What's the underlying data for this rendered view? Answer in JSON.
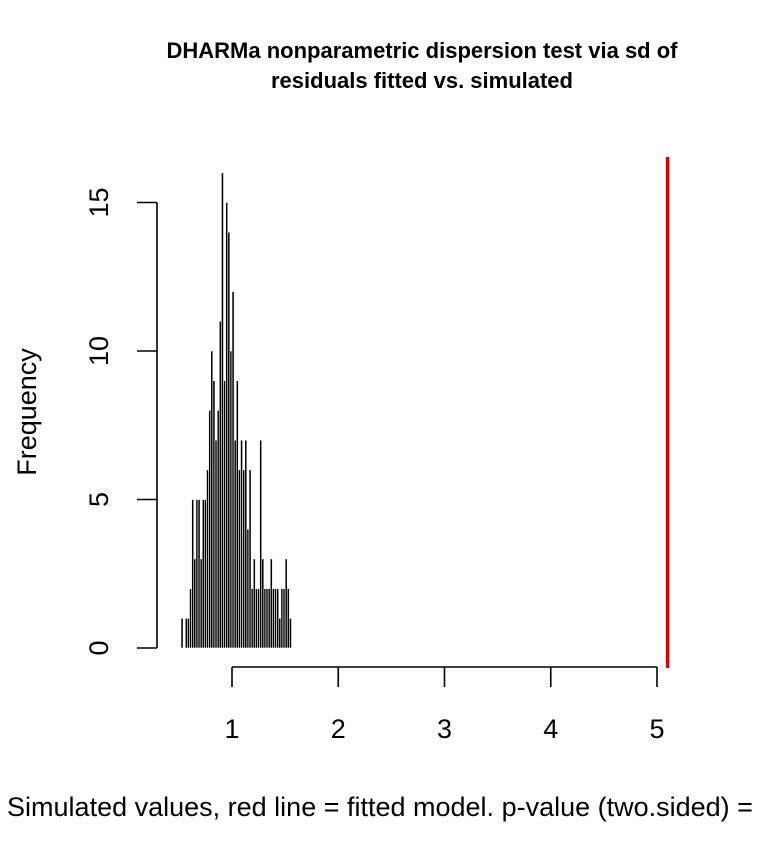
{
  "chart_data": {
    "type": "bar",
    "title_lines": [
      "DHARMa nonparametric dispersion test via sd of",
      "residuals fitted vs. simulated"
    ],
    "xlabel": "Simulated values, red line = fitted model. p-value (two.sided) =",
    "ylabel": "Frequency",
    "xlim": [
      0.3,
      5.1
    ],
    "ylim": [
      0,
      16
    ],
    "x_ticks": [
      1,
      2,
      3,
      4,
      5
    ],
    "y_ticks": [
      0,
      5,
      10,
      15
    ],
    "bin_width": 0.02,
    "bin_starts": [
      0.52,
      0.54,
      0.56,
      0.58,
      0.6,
      0.62,
      0.64,
      0.66,
      0.68,
      0.7,
      0.72,
      0.74,
      0.76,
      0.78,
      0.8,
      0.82,
      0.84,
      0.86,
      0.88,
      0.9,
      0.92,
      0.94,
      0.96,
      0.98,
      1.0,
      1.02,
      1.04,
      1.06,
      1.08,
      1.1,
      1.12,
      1.14,
      1.16,
      1.18,
      1.2,
      1.22,
      1.24,
      1.26,
      1.28,
      1.3,
      1.32,
      1.34,
      1.36,
      1.38,
      1.4,
      1.42,
      1.44,
      1.46,
      1.48,
      1.5,
      1.52,
      1.54
    ],
    "counts": [
      1,
      0,
      1,
      1,
      2,
      5,
      3,
      5,
      5,
      3,
      5,
      5,
      6,
      8,
      10,
      9,
      7,
      8,
      11,
      16,
      9,
      15,
      14,
      10,
      12,
      7,
      9,
      6,
      7,
      6,
      7,
      4,
      6,
      2,
      3,
      2,
      2,
      7,
      3,
      2,
      2,
      2,
      3,
      2,
      2,
      2,
      1,
      2,
      2,
      3,
      2,
      1
    ],
    "fitted_value": 5.1,
    "colors": {
      "bars": "#000000",
      "fitted_line": "#dd0000",
      "axes": "#000000"
    }
  }
}
